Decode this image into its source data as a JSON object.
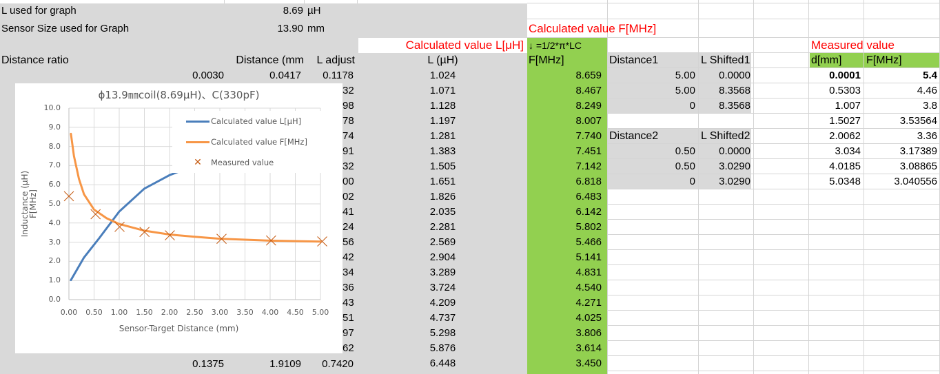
{
  "sheet": {
    "params": {
      "l_label": "L used for graph",
      "l_value": "8.69",
      "l_unit": "µH",
      "size_label": "Sensor Size used for Graph",
      "size_value": "13.90",
      "size_unit": "mm"
    },
    "headers": {
      "distance_ratio": "Distance ratio",
      "distance_mm": "Distance (mm",
      "l_adjust": "L adjust",
      "calc_l_title": "Calculated value L[μH]",
      "l_uh": "L (µH)",
      "calc_f_title": "Calculated value F[MHz]",
      "formula": "↓ =1/2*π*LC",
      "f_mhz": "F[MHz]",
      "distance1": "Distance1",
      "l_shifted1": "L Shifted1",
      "distance2": "Distance2",
      "l_shifted2": "L Shifted2",
      "measured_title": "Measured value",
      "d_mm": "d[mm]",
      "meas_f": "F[MHz]"
    },
    "first_row": {
      "ratio": "0.0030",
      "distance": "0.0417",
      "l_adjust": "0.1178"
    },
    "last_row": {
      "ratio": "0.1375",
      "distance": "1.9109",
      "l_adjust": "0.7420"
    },
    "l_adjust_visible_tails": [
      "32",
      "98",
      "78",
      "74",
      "91",
      "32",
      "00",
      "02",
      "41",
      "24",
      "56",
      "42",
      "34",
      "36",
      "43",
      "51",
      "97",
      "62"
    ],
    "l_values": [
      "1.024",
      "1.071",
      "1.128",
      "1.197",
      "1.281",
      "1.383",
      "1.505",
      "1.651",
      "1.826",
      "2.035",
      "2.281",
      "2.569",
      "2.904",
      "3.289",
      "3.724",
      "4.209",
      "4.737",
      "5.298",
      "5.876",
      "6.448"
    ],
    "f_values": [
      "8.659",
      "8.467",
      "8.249",
      "8.007",
      "7.740",
      "7.451",
      "7.142",
      "6.818",
      "6.483",
      "6.142",
      "5.802",
      "5.466",
      "5.141",
      "4.831",
      "4.540",
      "4.271",
      "4.025",
      "3.806",
      "3.614",
      "3.450"
    ],
    "shift1": [
      {
        "distance": "5.00",
        "l": "0.0000"
      },
      {
        "distance": "5.00",
        "l": "8.3568"
      },
      {
        "distance": "0",
        "l": "8.3568"
      }
    ],
    "shift2": [
      {
        "distance": "0.50",
        "l": "0.0000"
      },
      {
        "distance": "0.50",
        "l": "3.0290"
      },
      {
        "distance": "0",
        "l": "3.0290"
      }
    ],
    "measured": [
      {
        "d": "0.0001",
        "f": "5.4"
      },
      {
        "d": "0.5303",
        "f": "4.46"
      },
      {
        "d": "1.007",
        "f": "3.8"
      },
      {
        "d": "1.5027",
        "f": "3.53564"
      },
      {
        "d": "2.0062",
        "f": "3.36"
      },
      {
        "d": "3.034",
        "f": "3.17389"
      },
      {
        "d": "4.0185",
        "f": "3.08865"
      },
      {
        "d": "5.0348",
        "f": "3.040556"
      }
    ]
  },
  "chart": {
    "title": "ϕ13.9㎜coil(8.69μH)、C(330pF)",
    "ylabel_line1": "Inductance (µH)",
    "ylabel_line2": "F[MHz]",
    "xlabel": "Sensor-Target Distance (mm)",
    "yticks": [
      "10.0",
      "9.0",
      "8.0",
      "7.0",
      "6.0",
      "5.0",
      "4.0",
      "3.0",
      "2.0",
      "1.0",
      "0.0"
    ],
    "xticks": [
      "0.00",
      "0.50",
      "1.00",
      "1.50",
      "2.00",
      "2.50",
      "3.00",
      "3.50",
      "4.00",
      "4.50",
      "5.00"
    ],
    "legend": [
      "Calculated value L[μH]",
      "Calculated value F[MHz]",
      "Measured value"
    ],
    "colors": {
      "l": "#4a7ebb",
      "f": "#f79646",
      "measured": "#c55a11"
    }
  },
  "chart_data": {
    "type": "line",
    "title": "ϕ13.9㎜coil(8.69μH)、C(330pF)",
    "xlabel": "Sensor-Target Distance (mm)",
    "ylabel": "Inductance (µH) F[MHz]",
    "xlim": [
      0,
      5
    ],
    "ylim": [
      0,
      10
    ],
    "grid": true,
    "legend_position": "upper right",
    "series": [
      {
        "name": "Calculated value L[μH]",
        "type": "line",
        "x": [
          0.04,
          0.3,
          0.6,
          1.0,
          1.5,
          2.0,
          2.2
        ],
        "y": [
          1.02,
          2.2,
          3.2,
          4.6,
          5.8,
          6.5,
          6.7
        ]
      },
      {
        "name": "Calculated value F[MHz]",
        "type": "line",
        "x": [
          0.04,
          0.1,
          0.2,
          0.3,
          0.5,
          0.75,
          1.0,
          1.5,
          2.0,
          2.5,
          3.0,
          4.0,
          5.0
        ],
        "y": [
          8.66,
          7.5,
          6.3,
          5.5,
          4.7,
          4.25,
          3.95,
          3.6,
          3.4,
          3.28,
          3.18,
          3.08,
          3.03
        ]
      },
      {
        "name": "Measured value",
        "type": "scatter",
        "x": [
          0.0001,
          0.5303,
          1.007,
          1.5027,
          2.0062,
          3.034,
          4.0185,
          5.0348
        ],
        "y": [
          5.4,
          4.46,
          3.8,
          3.53564,
          3.36,
          3.17389,
          3.08865,
          3.040556
        ]
      }
    ]
  }
}
